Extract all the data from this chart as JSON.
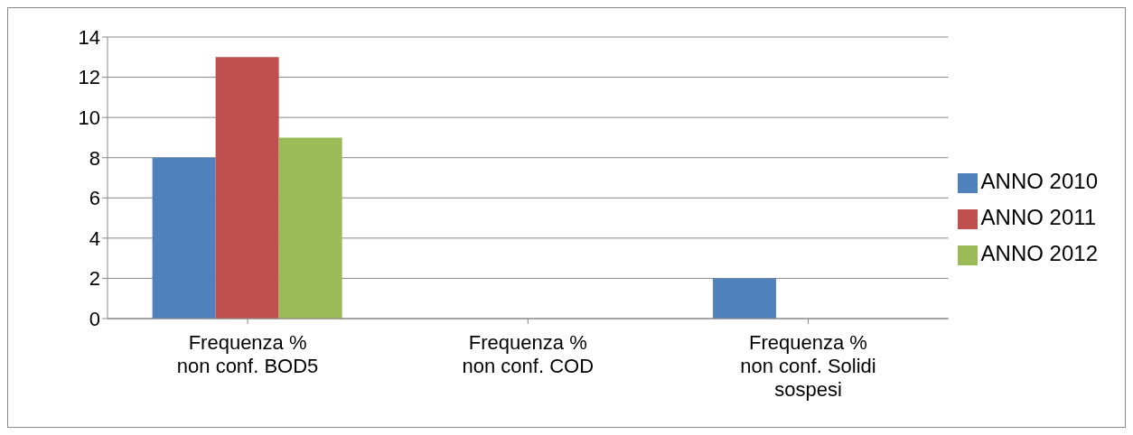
{
  "chart_data": {
    "type": "bar",
    "categories": [
      "Frequenza % non conf. BOD5",
      "Frequenza % non conf. COD",
      "Frequenza % non conf. Solidi sospesi"
    ],
    "series": [
      {
        "name": "ANNO 2010",
        "color": "#4f81bd",
        "values": [
          8,
          0,
          2
        ]
      },
      {
        "name": "ANNO 2011",
        "color": "#c0504d",
        "values": [
          13,
          0,
          0
        ]
      },
      {
        "name": "ANNO 2012",
        "color": "#9bbb59",
        "values": [
          9,
          0,
          0
        ]
      }
    ],
    "ylim": [
      0,
      14
    ],
    "yticks": [
      0,
      2,
      4,
      6,
      8,
      10,
      12,
      14
    ],
    "grid": "y",
    "legend": "right"
  }
}
